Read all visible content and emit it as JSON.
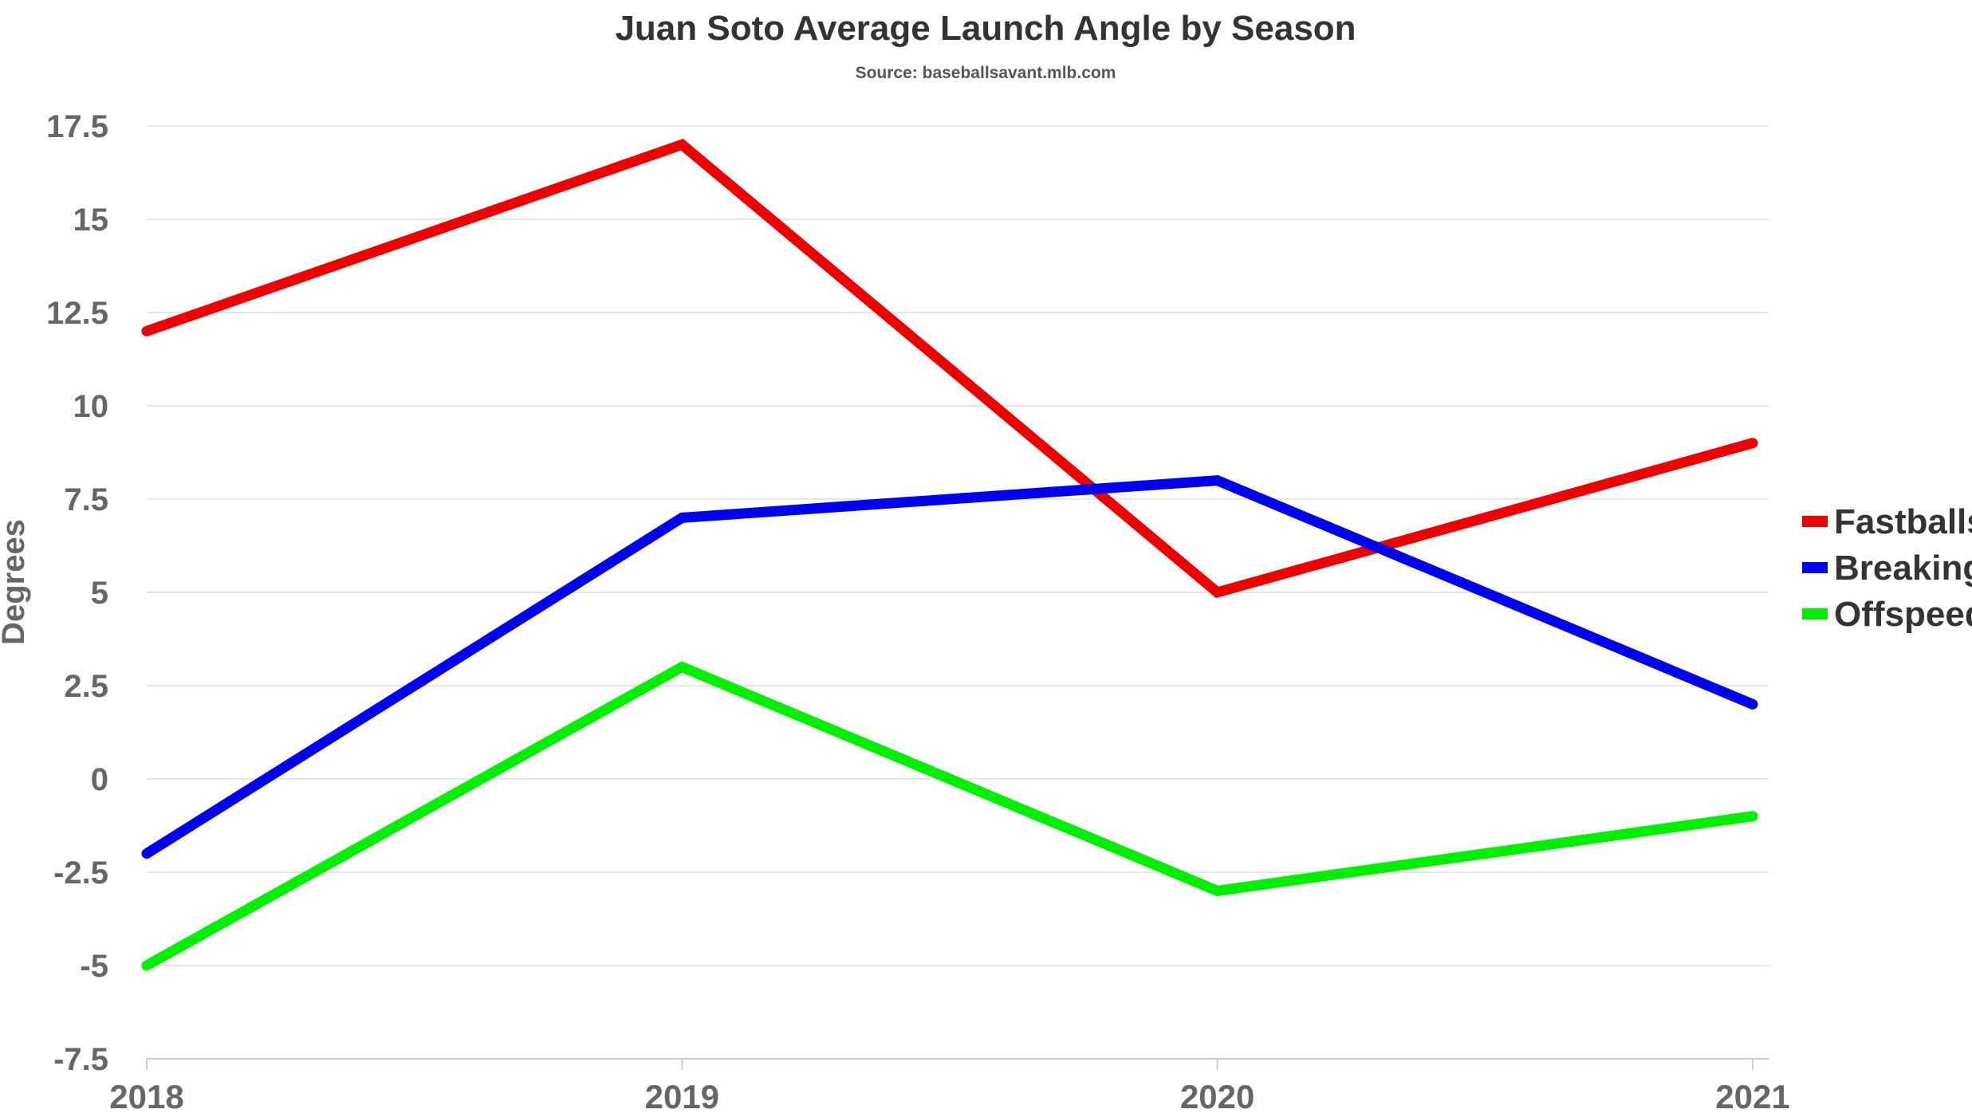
{
  "chart_data": {
    "type": "line",
    "title": "Juan Soto Average Launch Angle by Season",
    "subtitle": "Source: baseballsavant.mlb.com",
    "xlabel": "",
    "ylabel": "Degrees",
    "categories": [
      "2018",
      "2019",
      "2020",
      "2021"
    ],
    "ylim": [
      -7.5,
      17.5
    ],
    "yticks": [
      -7.5,
      -5,
      -2.5,
      0,
      2.5,
      5,
      7.5,
      10,
      12.5,
      15,
      17.5
    ],
    "ytick_labels": [
      "-7.5",
      "-5",
      "-2.5",
      "0",
      "2.5",
      "5",
      "7.5",
      "10",
      "12.5",
      "15",
      "17.5"
    ],
    "grid": true,
    "legend_position": "right",
    "series": [
      {
        "name": "Fastballs",
        "color": "#ee0000",
        "values": [
          12,
          17,
          5,
          9
        ]
      },
      {
        "name": "Breaking",
        "color": "#0000ee",
        "values": [
          -2,
          7,
          8,
          2
        ]
      },
      {
        "name": "Offspeed",
        "color": "#00ee00",
        "values": [
          -5,
          3,
          -3,
          -1
        ]
      }
    ]
  }
}
